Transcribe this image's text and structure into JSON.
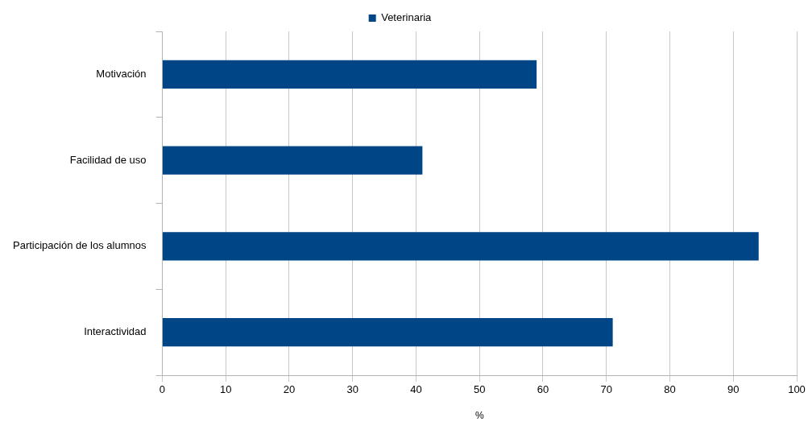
{
  "chart_data": {
    "type": "bar",
    "orientation": "horizontal",
    "categories": [
      "Motivación",
      "Facilidad de uso",
      "Participación de los alumnos",
      "Interactividad"
    ],
    "series": [
      {
        "name": "Veterinaria",
        "color": "#004586",
        "values": [
          59,
          41,
          94,
          71
        ]
      }
    ],
    "xlabel": "%",
    "xlim": [
      0,
      100
    ],
    "xticks": [
      0,
      10,
      20,
      30,
      40,
      50,
      60,
      70,
      80,
      90,
      100
    ],
    "grid": "x",
    "legend": "top"
  }
}
